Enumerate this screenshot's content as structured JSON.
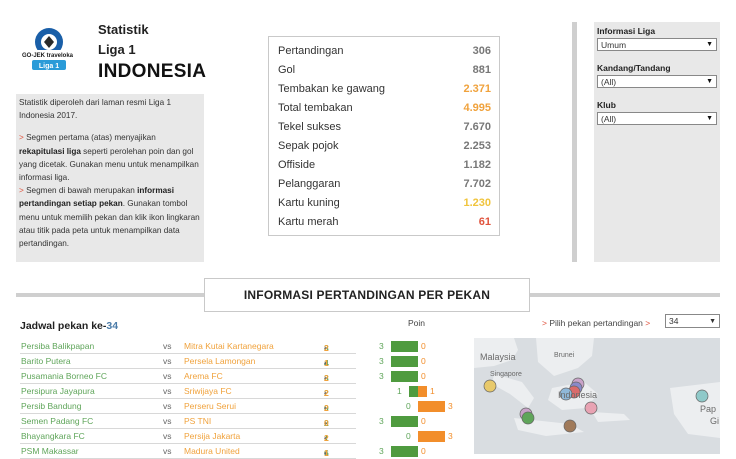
{
  "header": {
    "title_line1": "Statistik",
    "title_line2": "Liga 1",
    "title_line3": "INDONESIA",
    "logo": {
      "brand_text": "GO-JEK traveloka",
      "league_text": "Liga 1"
    }
  },
  "description": {
    "intro": "Statistik diperoleh dari laman resmi Liga 1 Indonesia 2017.",
    "p1_pre": " Segmen pertama (atas) menyajikan ",
    "p1_bold": "rekapitulasi liga",
    "p1_post": " seperti perolehan poin dan gol yang dicetak. Gunakan menu untuk menampilkan informasi liga.",
    "p2_pre": " Segmen di bawah merupakan ",
    "p2_bold": "informasi pertandingan setiap pekan",
    "p2_post": ". Gunakan tombol menu untuk memilih pekan dan klik ikon lingkaran atau titik pada peta untuk menampilkan data pertandingan.",
    "arrow": ">"
  },
  "stats": [
    {
      "label": "Pertandingan",
      "value": "306",
      "color": "gray"
    },
    {
      "label": "Gol",
      "value": "881",
      "color": "gray"
    },
    {
      "label": "Tembakan ke gawang",
      "value": "2.371",
      "color": "orange"
    },
    {
      "label": "Total tembakan",
      "value": "4.995",
      "color": "orange"
    },
    {
      "label": "Tekel sukses",
      "value": "7.670",
      "color": "gray"
    },
    {
      "label": "Sepak pojok",
      "value": "2.253",
      "color": "gray"
    },
    {
      "label": "Offiside",
      "value": "1.182",
      "color": "gray"
    },
    {
      "label": "Pelanggaran",
      "value": "7.702",
      "color": "gray"
    },
    {
      "label": "Kartu kuning",
      "value": "1.230",
      "color": "yellow"
    },
    {
      "label": "Kartu merah",
      "value": "61",
      "color": "red"
    }
  ],
  "filters": {
    "liga_label": "Informasi Liga",
    "liga_value": "Umum",
    "kandang_label": "Kandang/Tandang",
    "kandang_value": "(All)",
    "klub_label": "Klub",
    "klub_value": "(All)"
  },
  "section": {
    "title": "INFORMASI PERTANDINGAN PER PEKAN"
  },
  "schedule": {
    "title_prefix": "Jadwal pekan ke-",
    "week": "34",
    "poin_title": "Poin",
    "vs": "vs",
    "dot": "•",
    "matches": [
      {
        "home": "Persiba Balikpapan",
        "away": "Mitra Kutai Kartanegara",
        "hs": "3",
        "as": "2",
        "hp": 3,
        "ap": 0
      },
      {
        "home": "Barito Putera",
        "away": "Persela Lamongan",
        "hs": "4",
        "as": "1",
        "hp": 3,
        "ap": 0
      },
      {
        "home": "Pusamania Borneo FC",
        "away": "Arema FC",
        "hs": "3",
        "as": "2",
        "hp": 3,
        "ap": 0
      },
      {
        "home": "Persipura Jayapura",
        "away": "Sriwijaya FC",
        "hs": "2",
        "as": "2",
        "hp": 1,
        "ap": 1
      },
      {
        "home": "Persib Bandung",
        "away": "Perseru Serui",
        "hs": "0",
        "as": "2",
        "hp": 0,
        "ap": 3
      },
      {
        "home": "Semen Padang FC",
        "away": "PS TNI",
        "hs": "2",
        "as": "0",
        "hp": 3,
        "ap": 0
      },
      {
        "home": "Bhayangkara FC",
        "away": "Persija Jakarta",
        "hs": "1",
        "as": "2",
        "hp": 0,
        "ap": 3
      },
      {
        "home": "PSM Makassar",
        "away": "Madura United",
        "hs": "6",
        "as": "1",
        "hp": 3,
        "ap": 0
      }
    ]
  },
  "picker": {
    "arrow": ">",
    "label": " Pilih pekan pertandingan",
    "arrow2": " >",
    "value": "34"
  },
  "map": {
    "labels": {
      "malaysia": "Malaysia",
      "brunei": "Brunei",
      "singapore": "Singapore",
      "indonesia": "Indonesia",
      "papua": "Pap",
      "papua2": "Gi"
    },
    "colors": {
      "land": "#eceef0",
      "water": "#d9dde1"
    }
  },
  "colors": {
    "home": "#5fa55a",
    "away": "#f0a23c",
    "bar_home": "#4f9b3f",
    "bar_away": "#f28e2b",
    "accent": "#e0533d"
  }
}
